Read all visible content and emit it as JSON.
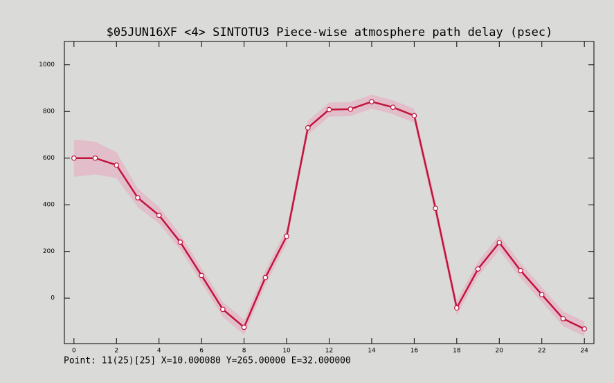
{
  "chart_data": {
    "type": "line",
    "title": "$05JUN16XF <4>  SINTOTU3  Piece-wise atmosphere path delay (psec)",
    "status": "Point: 11(25)[25] X=10.000080 Y=265.00000 E=32.000000",
    "x": [
      0,
      1,
      2,
      3,
      4,
      5,
      6,
      7,
      8,
      9,
      10,
      11,
      12,
      13,
      14,
      15,
      16,
      17,
      18,
      19,
      20,
      21,
      22,
      23,
      24
    ],
    "series": [
      {
        "color": "#c0143c",
        "band_color": "#e8a8c0",
        "values": [
          600,
          600,
          570,
          430,
          355,
          240,
          97,
          -48,
          -125,
          88,
          265,
          730,
          808,
          810,
          842,
          818,
          782,
          385,
          -42,
          125,
          238,
          118,
          15,
          -88,
          -132
        ],
        "errors": [
          80,
          70,
          55,
          40,
          35,
          32,
          32,
          32,
          32,
          32,
          32,
          30,
          30,
          30,
          30,
          30,
          30,
          32,
          32,
          32,
          32,
          32,
          32,
          32,
          32
        ]
      }
    ],
    "xlim": [
      -0.45,
      24.45
    ],
    "ylim": [
      -195,
      1100
    ],
    "xticks": [
      0,
      2,
      4,
      6,
      8,
      10,
      12,
      14,
      16,
      18,
      20,
      22,
      24
    ],
    "yticks": [
      0,
      200,
      400,
      600,
      800,
      1000
    ]
  }
}
